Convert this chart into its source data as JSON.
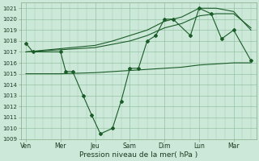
{
  "background_color": "#cce8d8",
  "grid_color": "#88bb99",
  "line_color": "#1a5c28",
  "xlabel": "Pression niveau de la mer( hPa )",
  "ylim": [
    1009,
    1021.5
  ],
  "yticks": [
    1009,
    1010,
    1011,
    1012,
    1013,
    1014,
    1015,
    1016,
    1017,
    1018,
    1019,
    1020,
    1021
  ],
  "xtick_labels": [
    "Ven",
    "Mer",
    "Jeu",
    "Sam",
    "Dim",
    "Lun",
    "Mar"
  ],
  "xtick_positions": [
    0,
    2,
    4,
    6,
    8,
    10,
    12
  ],
  "xlim": [
    -0.3,
    13.3
  ],
  "series1_x": [
    0,
    0.4,
    2,
    2.3,
    2.7,
    3.3,
    3.8,
    4.3,
    5.0,
    5.5,
    6.0,
    6.5,
    7.0,
    7.5,
    8.0,
    8.5,
    9.5,
    10.0,
    10.7,
    11.3,
    12.0,
    13.0
  ],
  "series1_y": [
    1017.8,
    1017.0,
    1017.0,
    1015.2,
    1015.2,
    1013.0,
    1011.2,
    1009.5,
    1010.0,
    1012.5,
    1015.5,
    1015.5,
    1018.0,
    1018.5,
    1020.0,
    1020.0,
    1018.5,
    1021.0,
    1020.5,
    1018.2,
    1019.0,
    1016.2
  ],
  "series2_x": [
    0,
    2,
    4,
    5,
    6,
    7,
    8,
    9,
    10,
    11,
    12,
    13
  ],
  "series2_y": [
    1017.0,
    1017.2,
    1017.4,
    1017.7,
    1018.0,
    1018.5,
    1019.2,
    1019.6,
    1020.3,
    1020.5,
    1020.5,
    1019.2
  ],
  "series3_x": [
    0,
    2,
    4,
    5,
    6,
    7,
    8,
    9,
    10,
    11,
    12,
    13
  ],
  "series3_y": [
    1017.0,
    1017.3,
    1017.6,
    1018.0,
    1018.5,
    1019.0,
    1019.8,
    1020.2,
    1021.0,
    1021.0,
    1020.7,
    1019.0
  ],
  "series4_x": [
    0,
    2,
    4,
    5,
    6,
    7,
    8,
    9,
    10,
    11,
    12,
    13
  ],
  "series4_y": [
    1015.0,
    1015.0,
    1015.1,
    1015.2,
    1015.3,
    1015.4,
    1015.5,
    1015.6,
    1015.8,
    1015.9,
    1016.0,
    1016.0
  ],
  "figsize": [
    3.2,
    2.0
  ],
  "dpi": 100
}
